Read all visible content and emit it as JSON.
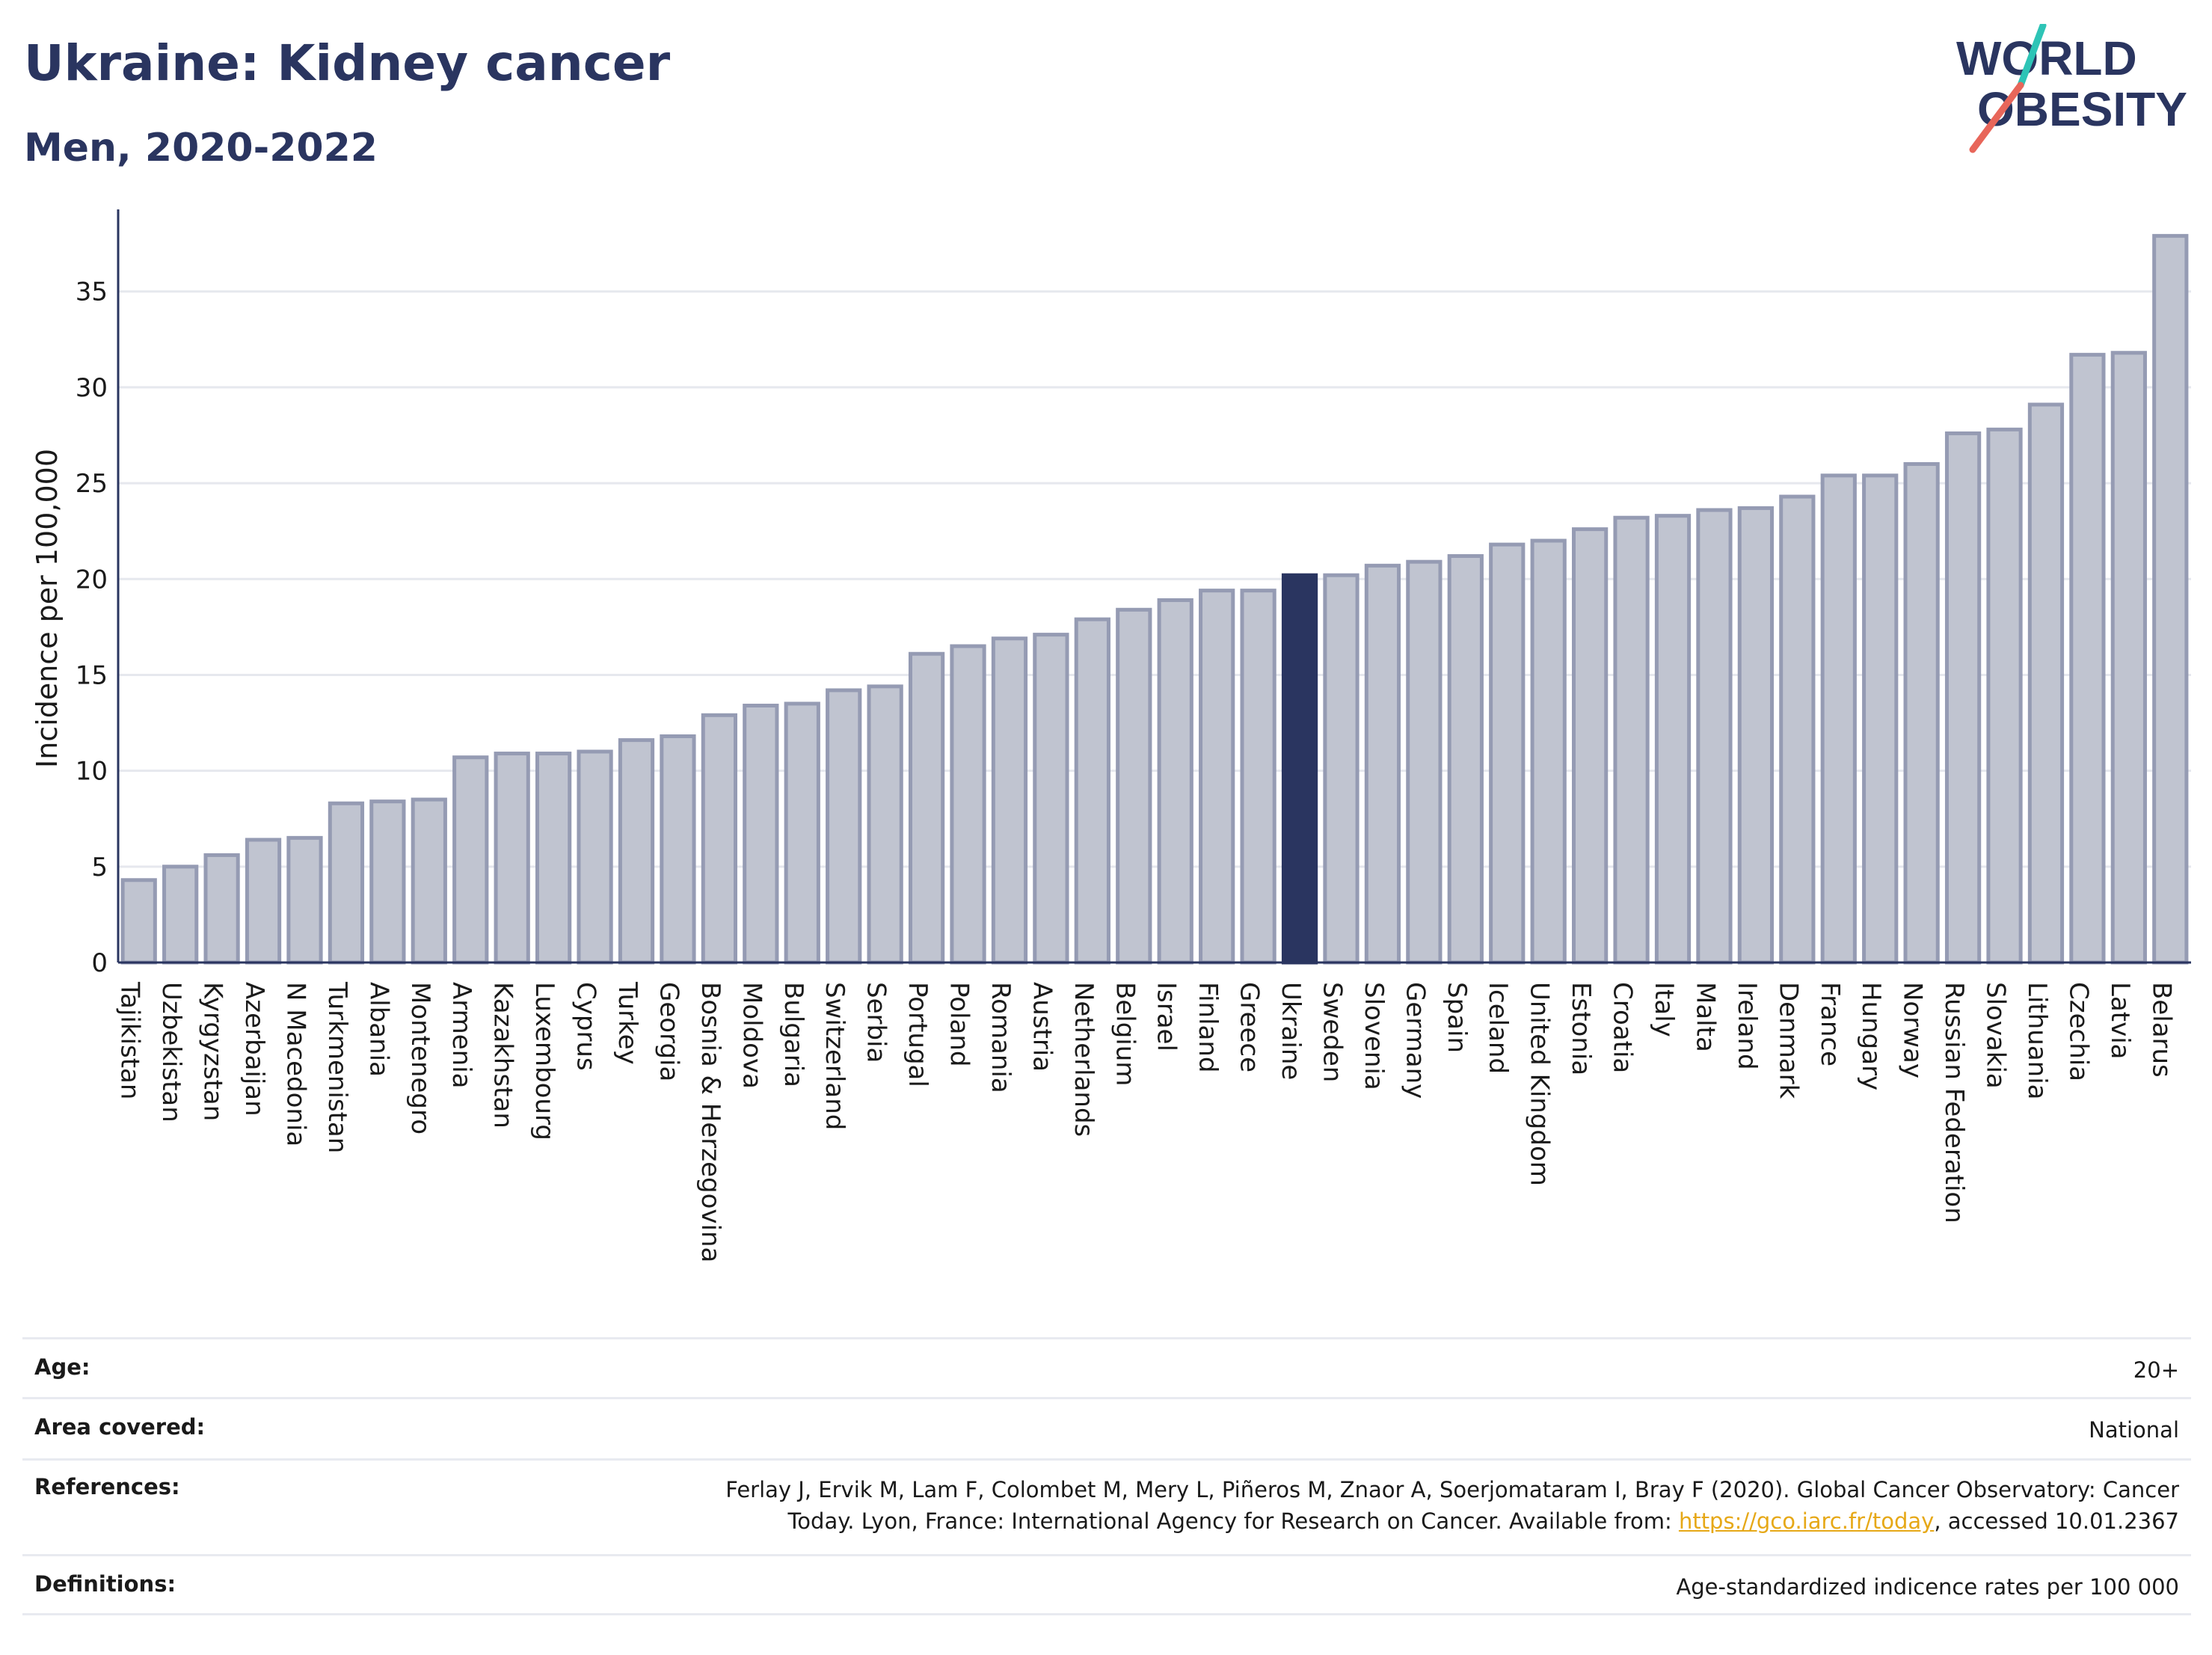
{
  "header": {
    "title": "Ukraine: Kidney cancer",
    "subtitle": "Men, 2020-2022"
  },
  "logo": {
    "line1": "WORLD",
    "line2": "OBESITY",
    "accent_colors": [
      "#2ec4b6",
      "#e8665a"
    ]
  },
  "colors": {
    "highlight": "#2a3560",
    "bar_fill": "#c0c4d0",
    "bar_stroke": "#959bb3",
    "grid": "#e6e8ee",
    "text": "#2a3560"
  },
  "chart_data": {
    "type": "bar",
    "title": "Ukraine: Kidney cancer",
    "subtitle": "Men, 2020-2022",
    "xlabel": "",
    "ylabel": "Incidence per 100,000",
    "ylim": [
      0,
      38.5
    ],
    "yticks": [
      0,
      5,
      10,
      15,
      20,
      25,
      30,
      35
    ],
    "grid": true,
    "highlight": "Ukraine",
    "categories": [
      "Tajikistan",
      "Uzbekistan",
      "Kyrgyzstan",
      "Azerbaijan",
      "N Macedonia",
      "Turkmenistan",
      "Albania",
      "Montenegro",
      "Armenia",
      "Kazakhstan",
      "Luxembourg",
      "Cyprus",
      "Turkey",
      "Georgia",
      "Bosnia & Herzegovina",
      "Moldova",
      "Bulgaria",
      "Switzerland",
      "Serbia",
      "Portugal",
      "Poland",
      "Romania",
      "Austria",
      "Netherlands",
      "Belgium",
      "Israel",
      "Finland",
      "Greece",
      "Ukraine",
      "Sweden",
      "Slovenia",
      "Germany",
      "Spain",
      "Iceland",
      "United Kingdom",
      "Estonia",
      "Croatia",
      "Italy",
      "Malta",
      "Ireland",
      "Denmark",
      "France",
      "Hungary",
      "Norway",
      "Russian Federation",
      "Slovakia",
      "Lithuania",
      "Czechia",
      "Latvia",
      "Belarus"
    ],
    "values": [
      4.3,
      5.0,
      5.6,
      6.4,
      6.5,
      8.3,
      8.4,
      8.5,
      10.7,
      10.9,
      10.9,
      11.0,
      11.6,
      11.8,
      12.9,
      13.4,
      13.5,
      14.2,
      14.4,
      16.1,
      16.5,
      16.9,
      17.1,
      17.9,
      18.4,
      18.9,
      19.4,
      19.4,
      20.2,
      20.2,
      20.7,
      20.9,
      21.2,
      21.8,
      22.0,
      22.6,
      23.2,
      23.3,
      23.6,
      23.7,
      24.3,
      25.4,
      25.4,
      26.0,
      27.6,
      27.8,
      29.1,
      31.7,
      31.8,
      37.9
    ]
  },
  "info": {
    "age_label": "Age:",
    "age_value": "20+",
    "area_label": "Area covered:",
    "area_value": "National",
    "references_label": "References:",
    "references_line1": "Ferlay J, Ervik M, Lam F, Colombet M, Mery L, Piñeros M, Znaor A, Soerjomataram I, Bray F (2020). Global Cancer Observatory: Cancer",
    "references_line2_pre": "Today. Lyon, France: International Agency for Research on Cancer. Available from: ",
    "references_link": "https://gco.iarc.fr/today",
    "references_line2_post": ", accessed 10.01.2367",
    "definitions_label": "Definitions:",
    "definitions_value": "Age-standardized indicence rates per 100 000"
  }
}
